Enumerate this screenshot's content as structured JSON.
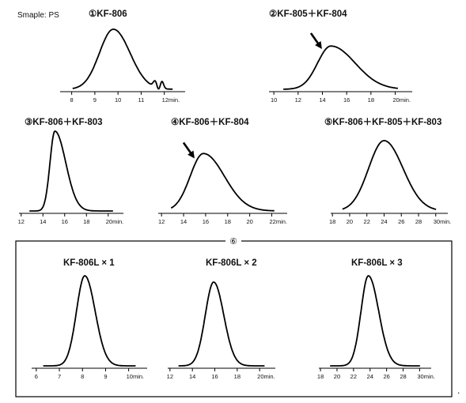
{
  "sample_label": "Smaple: PS",
  "group_label": "⑥",
  "trailing_mark": ".",
  "chart_data": [
    {
      "type": "line",
      "title": "①KF-806",
      "x_ticks": [
        "8",
        "9",
        "10",
        "11",
        "12min."
      ],
      "xlim": [
        7.5,
        12.9
      ],
      "peaks": [
        {
          "center": 9.8,
          "width_left": 0.6,
          "width_right": 0.72,
          "height": 1.0
        }
      ],
      "extra": "shoulders",
      "arrow": false
    },
    {
      "type": "line",
      "title": "②KF-805＋KF-804",
      "x_ticks": [
        "10",
        "12",
        "14",
        "16",
        "18",
        "20min."
      ],
      "xlim": [
        9.6,
        21.4
      ],
      "peaks": [
        {
          "center": 14.7,
          "width_left": 1.1,
          "width_right": 2.0,
          "height": 0.72
        }
      ],
      "arrow": true
    },
    {
      "type": "line",
      "title": "③KF-806＋KF-803",
      "x_ticks": [
        "12",
        "14",
        "16",
        "18",
        "20min."
      ],
      "xlim": [
        11.8,
        21.4
      ],
      "peaks": [
        {
          "center": 15.1,
          "width_left": 0.45,
          "width_right": 1.0,
          "height": 1.0
        }
      ],
      "arrow": false
    },
    {
      "type": "line",
      "title": "④KF-806＋KF-804",
      "x_ticks": [
        "12",
        "14",
        "16",
        "18",
        "20",
        "22min."
      ],
      "xlim": [
        11.7,
        23.4
      ],
      "peaks": [
        {
          "center": 15.8,
          "width_left": 1.2,
          "width_right": 1.9,
          "height": 0.72
        }
      ],
      "arrow": true
    },
    {
      "type": "line",
      "title": "⑤KF-806＋KF-805＋KF-803",
      "x_ticks": [
        "18",
        "20",
        "22",
        "24",
        "26",
        "28",
        "30min."
      ],
      "xlim": [
        17.8,
        31.4
      ],
      "peaks": [
        {
          "center": 24.0,
          "width_left": 1.8,
          "width_right": 2.2,
          "height": 1.0
        }
      ],
      "arrow": false
    },
    {
      "type": "line",
      "title": "KF-806L × 1",
      "x_ticks": [
        "6",
        "7",
        "8",
        "9",
        "10min."
      ],
      "xlim": [
        5.8,
        10.8
      ],
      "peaks": [
        {
          "center": 8.1,
          "width_left": 0.36,
          "width_right": 0.45,
          "height": 1.0
        }
      ],
      "arrow": false
    },
    {
      "type": "line",
      "title": "KF-806L × 2",
      "x_ticks": [
        "12",
        "14",
        "16",
        "18",
        "20min."
      ],
      "xlim": [
        11.8,
        21.4
      ],
      "peaks": [
        {
          "center": 15.9,
          "width_left": 0.75,
          "width_right": 0.9,
          "height": 0.93
        }
      ],
      "arrow": false
    },
    {
      "type": "line",
      "title": "KF-806L × 3",
      "x_ticks": [
        "18",
        "20",
        "22",
        "24",
        "26",
        "28",
        "30min."
      ],
      "xlim": [
        17.8,
        31.4
      ],
      "peaks": [
        {
          "center": 23.8,
          "width_left": 0.9,
          "width_right": 1.25,
          "height": 1.0
        }
      ],
      "arrow": false
    }
  ]
}
